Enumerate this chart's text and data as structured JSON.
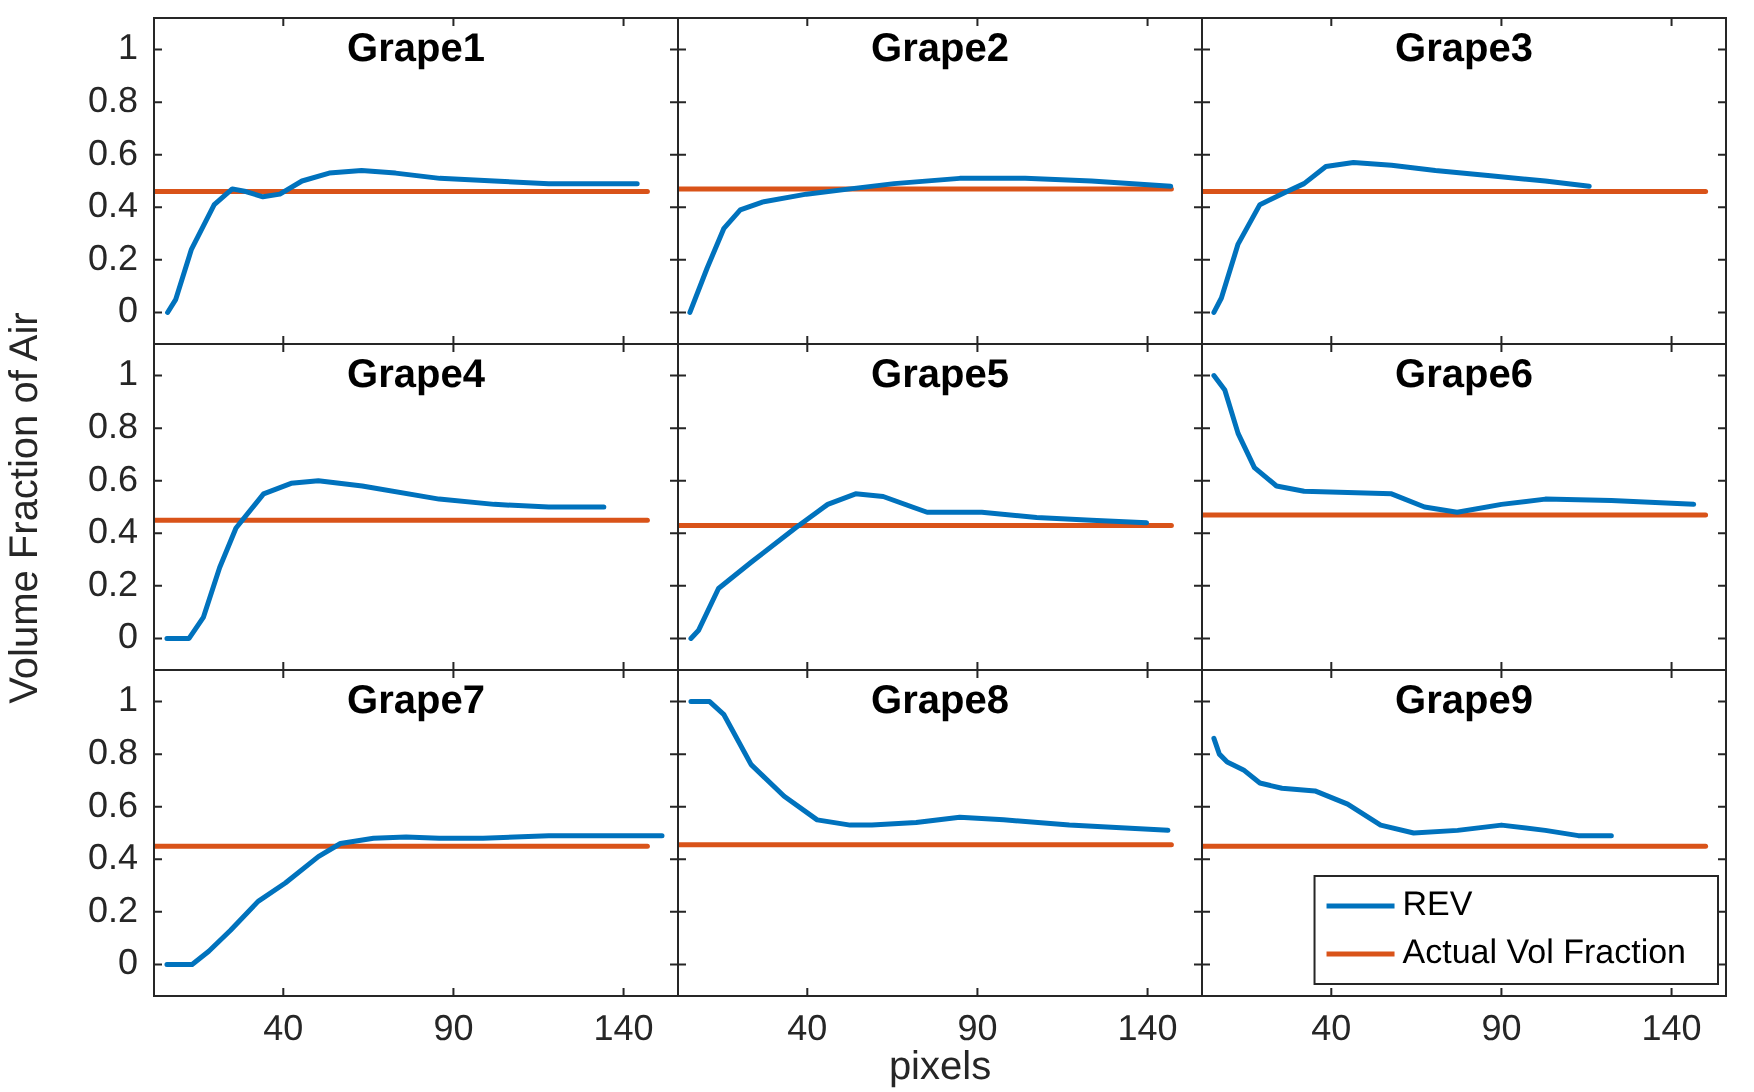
{
  "chart_data": [
    {
      "type": "line",
      "title": "Grape1",
      "xlim": [
        2,
        156
      ],
      "xticks": [
        40,
        90,
        140
      ],
      "ylim": [
        -0.12,
        1.12
      ],
      "yticks": [
        0,
        0.2,
        0.4,
        0.6,
        0.8,
        1
      ],
      "tick_labels": "y",
      "series": [
        {
          "color": "#0072bd",
          "x": [
            6,
            8.4,
            13,
            19.7,
            25,
            29,
            34,
            39,
            45.5,
            53.5,
            63,
            73,
            86,
            102,
            118,
            144
          ],
          "values": [
            0,
            0.05,
            0.24,
            0.41,
            0.47,
            0.46,
            0.44,
            0.45,
            0.5,
            0.53,
            0.54,
            0.53,
            0.51,
            0.5,
            0.49,
            0.49
          ]
        },
        {
          "color": "#d95319",
          "x": [
            2,
            147
          ],
          "values": [
            0.46,
            0.46
          ]
        }
      ]
    },
    {
      "type": "line",
      "title": "Grape2",
      "xlim": [
        2,
        156
      ],
      "xticks": [
        40,
        90,
        140
      ],
      "ylim": [
        -0.12,
        1.12
      ],
      "yticks": [
        0,
        0.2,
        0.4,
        0.6,
        0.8,
        1
      ],
      "tick_labels": false,
      "series": [
        {
          "color": "#0072bd",
          "x": [
            5.5,
            10.6,
            15.5,
            20.3,
            26.8,
            39.7,
            52.6,
            65.5,
            84.8,
            104,
            123.5,
            146.8
          ],
          "values": [
            0,
            0.17,
            0.32,
            0.39,
            0.42,
            0.45,
            0.47,
            0.49,
            0.51,
            0.51,
            0.5,
            0.48
          ]
        },
        {
          "color": "#d95319",
          "x": [
            2,
            147
          ],
          "values": [
            0.47,
            0.47
          ]
        }
      ]
    },
    {
      "type": "line",
      "title": "Grape3",
      "xlim": [
        2,
        156
      ],
      "xticks": [
        40,
        90,
        140
      ],
      "ylim": [
        -0.12,
        1.12
      ],
      "yticks": [
        0,
        0.2,
        0.4,
        0.6,
        0.8,
        1
      ],
      "tick_labels": false,
      "series": [
        {
          "color": "#0072bd",
          "x": [
            5.5,
            7.7,
            12.6,
            19,
            27,
            32,
            38.4,
            46.5,
            57.7,
            70.6,
            86.8,
            102.9,
            115.8
          ],
          "values": [
            0,
            0.055,
            0.26,
            0.41,
            0.46,
            0.49,
            0.555,
            0.57,
            0.56,
            0.54,
            0.52,
            0.5,
            0.48
          ]
        },
        {
          "color": "#d95319",
          "x": [
            2,
            150
          ],
          "values": [
            0.46,
            0.46
          ]
        }
      ]
    },
    {
      "type": "line",
      "title": "Grape4",
      "ylabel": "Volume Fraction of Air",
      "xlim": [
        2,
        156
      ],
      "xticks": [
        40,
        90,
        140
      ],
      "ylim": [
        -0.12,
        1.12
      ],
      "yticks": [
        0,
        0.2,
        0.4,
        0.6,
        0.8,
        1
      ],
      "tick_labels": "y",
      "series": [
        {
          "color": "#0072bd",
          "x": [
            5.8,
            12.3,
            16.5,
            21.3,
            26.1,
            34.2,
            42.3,
            50.3,
            63.2,
            85.8,
            102,
            118,
            134.2
          ],
          "values": [
            0,
            0,
            0.08,
            0.27,
            0.42,
            0.55,
            0.59,
            0.6,
            0.58,
            0.53,
            0.51,
            0.5,
            0.5
          ]
        },
        {
          "color": "#d95319",
          "x": [
            2,
            147
          ],
          "values": [
            0.45,
            0.45
          ]
        }
      ]
    },
    {
      "type": "line",
      "title": "Grape5",
      "xlim": [
        2,
        156
      ],
      "xticks": [
        40,
        90,
        140
      ],
      "ylim": [
        -0.12,
        1.12
      ],
      "yticks": [
        0,
        0.2,
        0.4,
        0.6,
        0.8,
        1
      ],
      "tick_labels": false,
      "series": [
        {
          "color": "#0072bd",
          "x": [
            5.8,
            8,
            13.9,
            23.5,
            36.5,
            46,
            54.2,
            62.3,
            75.2,
            91.3,
            107.4,
            123.5,
            139.7
          ],
          "values": [
            0,
            0.03,
            0.19,
            0.29,
            0.42,
            0.51,
            0.55,
            0.54,
            0.48,
            0.48,
            0.46,
            0.45,
            0.44
          ]
        },
        {
          "color": "#d95319",
          "x": [
            2,
            147
          ],
          "values": [
            0.43,
            0.43
          ]
        }
      ]
    },
    {
      "type": "line",
      "title": "Grape6",
      "xlim": [
        2,
        156
      ],
      "xticks": [
        40,
        90,
        140
      ],
      "ylim": [
        -0.12,
        1.12
      ],
      "yticks": [
        0,
        0.2,
        0.4,
        0.6,
        0.8,
        1
      ],
      "tick_labels": false,
      "series": [
        {
          "color": "#0072bd",
          "x": [
            5.5,
            8.7,
            12.6,
            17.4,
            23.9,
            32,
            44.8,
            57.7,
            67.4,
            77,
            90,
            102.9,
            122.3,
            146.5
          ],
          "values": [
            1,
            0.945,
            0.78,
            0.65,
            0.58,
            0.56,
            0.555,
            0.55,
            0.5,
            0.48,
            0.51,
            0.53,
            0.525,
            0.51
          ]
        },
        {
          "color": "#d95319",
          "x": [
            2,
            150
          ],
          "values": [
            0.47,
            0.47
          ]
        }
      ]
    },
    {
      "type": "line",
      "title": "Grape7",
      "xlim": [
        2,
        156
      ],
      "xticks": [
        40,
        90,
        140
      ],
      "ylim": [
        -0.12,
        1.12
      ],
      "yticks": [
        0,
        0.2,
        0.4,
        0.6,
        0.8,
        1
      ],
      "series": [
        {
          "color": "#0072bd",
          "x": [
            5.8,
            13.2,
            18.1,
            24.5,
            32.6,
            40.6,
            50.3,
            56.8,
            66.5,
            76.1,
            85.8,
            98.7,
            118,
            137.4,
            151.3
          ],
          "values": [
            0,
            0,
            0.05,
            0.13,
            0.24,
            0.31,
            0.41,
            0.46,
            0.48,
            0.485,
            0.48,
            0.48,
            0.49,
            0.49,
            0.49
          ]
        },
        {
          "color": "#d95319",
          "x": [
            2,
            147
          ],
          "values": [
            0.45,
            0.45
          ]
        }
      ]
    },
    {
      "type": "line",
      "title": "Grape8",
      "xlabel": "pixels",
      "xlim": [
        2,
        156
      ],
      "xticks": [
        40,
        90,
        140
      ],
      "ylim": [
        -0.12,
        1.12
      ],
      "yticks": [
        0,
        0.2,
        0.4,
        0.6,
        0.8,
        1
      ],
      "tick_labels": "x",
      "series": [
        {
          "color": "#0072bd",
          "x": [
            5.8,
            11.3,
            15.5,
            23.5,
            33.2,
            42.9,
            52.6,
            59,
            72,
            84.8,
            97.7,
            117,
            146
          ],
          "values": [
            1,
            1,
            0.95,
            0.76,
            0.64,
            0.55,
            0.53,
            0.53,
            0.54,
            0.56,
            0.55,
            0.53,
            0.51
          ]
        },
        {
          "color": "#d95319",
          "x": [
            2,
            147
          ],
          "values": [
            0.455,
            0.455
          ]
        }
      ]
    },
    {
      "type": "line",
      "title": "Grape9",
      "xlim": [
        2,
        156
      ],
      "xticks": [
        40,
        90,
        140
      ],
      "ylim": [
        -0.12,
        1.12
      ],
      "yticks": [
        0,
        0.2,
        0.4,
        0.6,
        0.8,
        1
      ],
      "tick_labels": "x",
      "legend": "bottom right",
      "series": [
        {
          "name": "REV",
          "color": "#0072bd",
          "x": [
            5.5,
            7.1,
            9.4,
            14.2,
            19,
            25.5,
            35.2,
            44.8,
            54.5,
            64.2,
            77.1,
            90,
            102.9,
            112.6,
            122.3
          ],
          "values": [
            0.86,
            0.8,
            0.77,
            0.74,
            0.69,
            0.67,
            0.66,
            0.61,
            0.53,
            0.5,
            0.51,
            0.53,
            0.51,
            0.49,
            0.49
          ]
        },
        {
          "name": "Actual Vol Fraction",
          "color": "#d95319",
          "x": [
            2,
            150
          ],
          "values": [
            0.45,
            0.45
          ]
        }
      ]
    }
  ]
}
